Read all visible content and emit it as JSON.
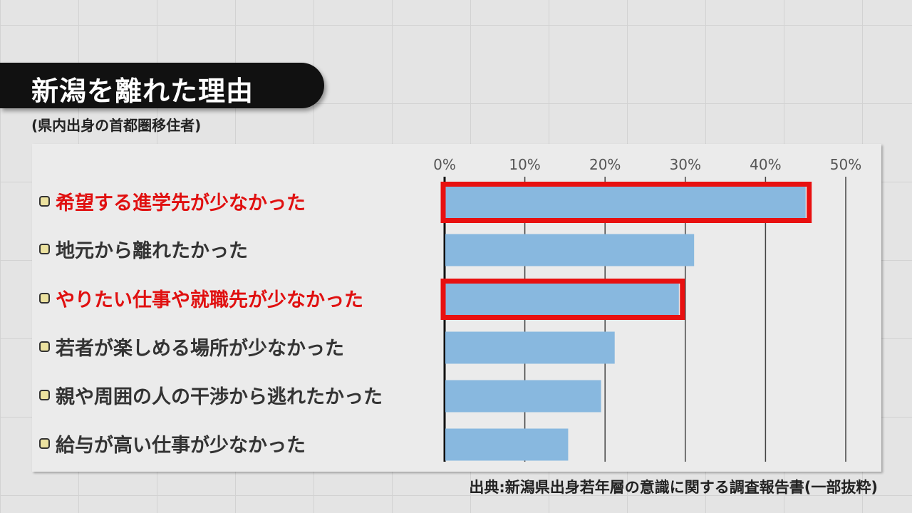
{
  "title": "新潟を離れた理由",
  "subtitle": "(県内出身の首都圏移住者)",
  "source": "出典:新潟県出身若年層の意識に関する調査報告書(一部抜粋)",
  "colors": {
    "bar": "#88b8df",
    "highlight": "#e81010",
    "label_highlight": "#e01010"
  },
  "chart_data": {
    "type": "bar",
    "orientation": "horizontal",
    "categories": [
      "希望する進学先が少なかった",
      "地元から離れたかった",
      "やりたい仕事や就職先が少なかった",
      "若者が楽しめる場所が少なかった",
      "親や周囲の人の干渉から逃れたかった",
      "給与が高い仕事が少なかった"
    ],
    "values": [
      45.0,
      31.1,
      29.2,
      21.2,
      19.5,
      15.4
    ],
    "highlighted": [
      true,
      false,
      true,
      false,
      false,
      false
    ],
    "xlim": [
      0,
      50
    ],
    "xticks": [
      "0%",
      "10%",
      "20%",
      "30%",
      "40%",
      "50%"
    ],
    "grid": true,
    "unit": "%"
  }
}
